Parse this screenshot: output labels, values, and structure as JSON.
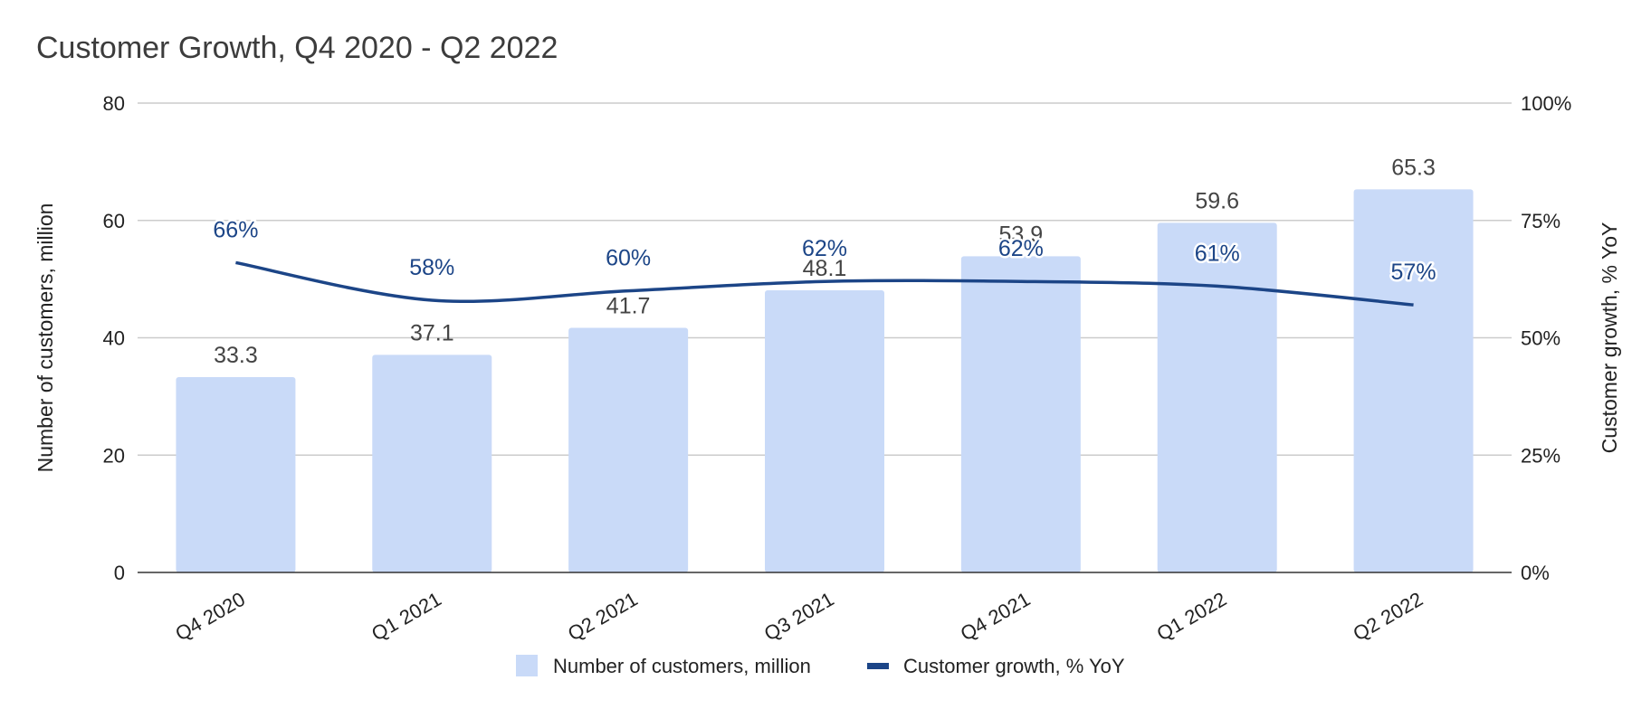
{
  "chart_data": {
    "type": "bar",
    "title": "Customer Growth, Q4 2020 - Q2 2022",
    "categories": [
      "Q4 2020",
      "Q1 2021",
      "Q2 2021",
      "Q3 2021",
      "Q4 2021",
      "Q1 2022",
      "Q2 2022"
    ],
    "series": [
      {
        "name": "Number of customers, million",
        "type": "bar",
        "axis": "left",
        "values": [
          33.3,
          37.1,
          41.7,
          48.1,
          53.9,
          59.6,
          65.3
        ],
        "labels": [
          "33.3",
          "37.1",
          "41.7",
          "48.1",
          "53.9",
          "59.6",
          "65.3"
        ],
        "color": "#c9daf8"
      },
      {
        "name": "Customer growth, % YoY",
        "type": "line",
        "axis": "right",
        "values": [
          66,
          58,
          60,
          62,
          62,
          61,
          57
        ],
        "labels": [
          "66%",
          "58%",
          "60%",
          "62%",
          "62%",
          "61%",
          "57%"
        ],
        "color": "#1c4587"
      }
    ],
    "y_left": {
      "label": "Number of customers, million",
      "range": [
        0,
        80
      ],
      "ticks": [
        "0",
        "20",
        "40",
        "60",
        "80"
      ]
    },
    "y_right": {
      "label": "Customer growth, % YoY",
      "range": [
        0,
        100
      ],
      "ticks": [
        "0%",
        "25%",
        "50%",
        "75%",
        "100%"
      ]
    },
    "grid": true,
    "legend_position": "bottom"
  }
}
